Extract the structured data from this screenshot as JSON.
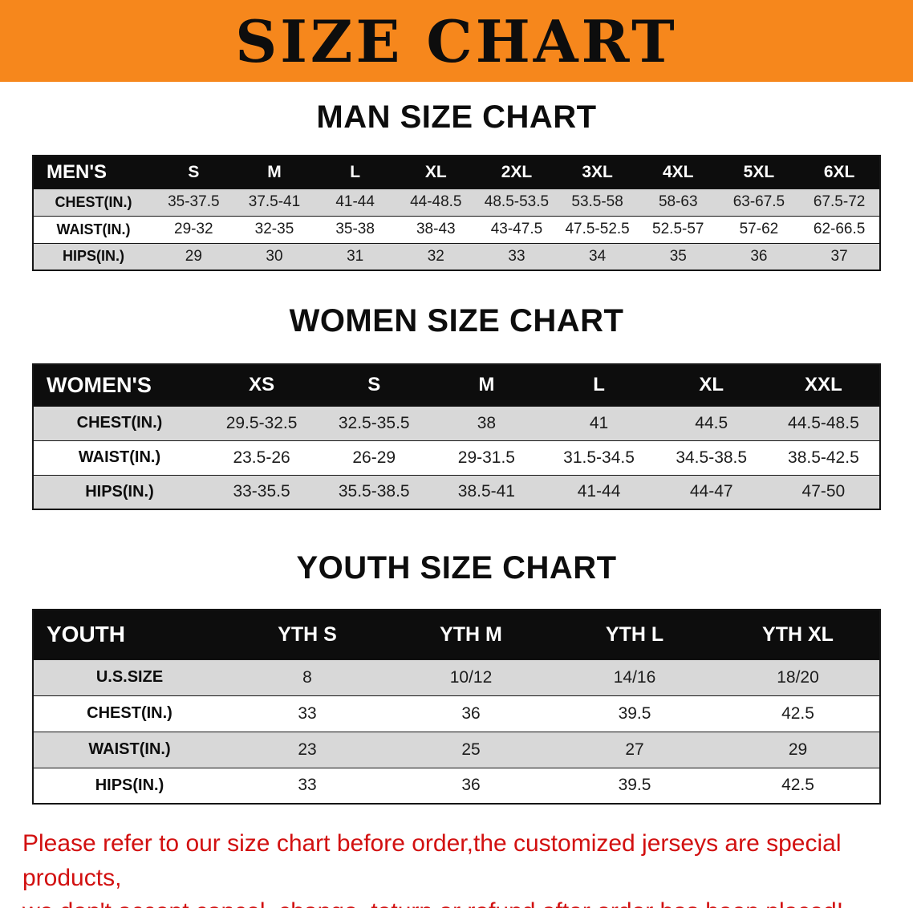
{
  "banner": {
    "title": "SIZE CHART",
    "bg_color": "#f6871c",
    "text_color": "#0d0d0d"
  },
  "sections": [
    {
      "heading": "MAN SIZE CHART",
      "table": {
        "header": [
          "MEN'S",
          "S",
          "M",
          "L",
          "XL",
          "2XL",
          "3XL",
          "4XL",
          "5XL",
          "6XL"
        ],
        "rows": [
          {
            "label": "CHEST(IN.)",
            "values": [
              "35-37.5",
              "37.5-41",
              "41-44",
              "44-48.5",
              "48.5-53.5",
              "53.5-58",
              "58-63",
              "63-67.5",
              "67.5-72"
            ]
          },
          {
            "label": "WAIST(IN.)",
            "values": [
              "29-32",
              "32-35",
              "35-38",
              "38-43",
              "43-47.5",
              "47.5-52.5",
              "52.5-57",
              "57-62",
              "62-66.5"
            ]
          },
          {
            "label": "HIPS(IN.)",
            "values": [
              "29",
              "30",
              "31",
              "32",
              "33",
              "34",
              "35",
              "36",
              "37"
            ]
          }
        ]
      }
    },
    {
      "heading": "WOMEN SIZE CHART",
      "table": {
        "header": [
          "WOMEN'S",
          "XS",
          "S",
          "M",
          "L",
          "XL",
          "XXL"
        ],
        "rows": [
          {
            "label": "CHEST(IN.)",
            "values": [
              "29.5-32.5",
              "32.5-35.5",
              "38",
              "41",
              "44.5",
              "44.5-48.5"
            ]
          },
          {
            "label": "WAIST(IN.)",
            "values": [
              "23.5-26",
              "26-29",
              "29-31.5",
              "31.5-34.5",
              "34.5-38.5",
              "38.5-42.5"
            ]
          },
          {
            "label": "HIPS(IN.)",
            "values": [
              "33-35.5",
              "35.5-38.5",
              "38.5-41",
              "41-44",
              "44-47",
              "47-50"
            ]
          }
        ]
      }
    },
    {
      "heading": "YOUTH SIZE CHART",
      "table": {
        "header": [
          "YOUTH",
          "YTH S",
          "YTH M",
          "YTH L",
          "YTH XL"
        ],
        "rows": [
          {
            "label": "U.S.SIZE",
            "values": [
              "8",
              "10/12",
              "14/16",
              "18/20"
            ]
          },
          {
            "label": "CHEST(IN.)",
            "values": [
              "33",
              "36",
              "39.5",
              "42.5"
            ]
          },
          {
            "label": "WAIST(IN.)",
            "values": [
              "23",
              "25",
              "27",
              "29"
            ]
          },
          {
            "label": "HIPS(IN.)",
            "values": [
              "33",
              "36",
              "39.5",
              "42.5"
            ]
          }
        ]
      }
    }
  ],
  "disclaimer": {
    "line1": "Please refer to our size chart before order,the customized jerseys are special products,",
    "line2": "we don't accept cancel, change, teturn or refund after order has been placed!",
    "color": "#d21010"
  }
}
